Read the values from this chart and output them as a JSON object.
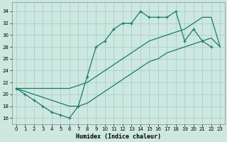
{
  "xlabel": "Humidex (Indice chaleur)",
  "xlim": [
    -0.5,
    23.5
  ],
  "ylim": [
    15,
    35.5
  ],
  "yticks": [
    16,
    18,
    20,
    22,
    24,
    26,
    28,
    30,
    32,
    34
  ],
  "xticks": [
    0,
    1,
    2,
    3,
    4,
    5,
    6,
    7,
    8,
    9,
    10,
    11,
    12,
    13,
    14,
    15,
    16,
    17,
    18,
    19,
    20,
    21,
    22,
    23
  ],
  "bg_color": "#cde8e0",
  "grid_color": "#aacfc6",
  "line_color": "#1a7a6e",
  "s_jagged_x": [
    0,
    1,
    2,
    3,
    4,
    5,
    6,
    7,
    8,
    9,
    10,
    11,
    12,
    13,
    14,
    15,
    16,
    17,
    18,
    19,
    20,
    21,
    22
  ],
  "s_jagged_y": [
    21,
    20,
    19,
    18,
    17,
    16.5,
    16,
    18,
    23,
    28,
    29,
    31,
    32,
    32,
    34,
    33,
    33,
    33,
    34,
    29,
    31,
    29,
    28
  ],
  "s_upper_x": [
    0,
    1,
    2,
    3,
    4,
    5,
    6,
    7,
    8,
    9,
    10,
    11,
    12,
    13,
    14,
    15,
    16,
    17,
    18,
    19,
    20,
    21,
    22,
    23
  ],
  "s_upper_y": [
    21,
    21,
    21,
    21,
    21,
    21,
    21,
    21.5,
    22,
    23,
    24,
    25,
    26,
    27,
    28,
    29,
    29.5,
    30,
    30.5,
    31,
    32,
    33,
    33,
    28
  ],
  "s_lower_x": [
    0,
    1,
    2,
    3,
    4,
    5,
    6,
    7,
    8,
    9,
    10,
    11,
    12,
    13,
    14,
    15,
    16,
    17,
    18,
    19,
    20,
    21,
    22,
    23
  ],
  "s_lower_y": [
    21,
    20.5,
    20,
    19.5,
    19,
    18.5,
    18,
    18,
    18.5,
    19.5,
    20.5,
    21.5,
    22.5,
    23.5,
    24.5,
    25.5,
    26,
    27,
    27.5,
    28,
    28.5,
    29,
    29.5,
    28
  ]
}
